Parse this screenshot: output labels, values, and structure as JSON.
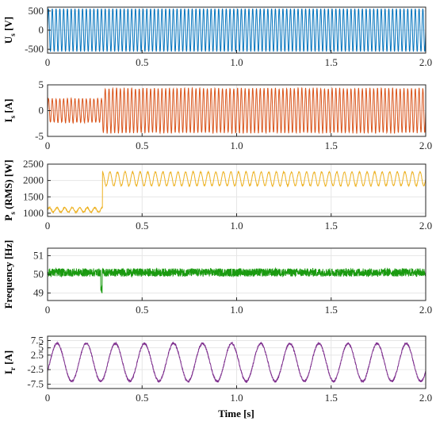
{
  "figure": {
    "xlabel": "Time [s]"
  },
  "chart_data": [
    {
      "type": "line",
      "ylabel": "U",
      "ylabel_sub": "s",
      "ylabel_unit": " [V]",
      "xlim": [
        0,
        2.0
      ],
      "ylim": [
        -600,
        600
      ],
      "xticks": [
        0,
        0.5,
        1.0,
        1.5,
        2.0
      ],
      "xtick_labels": [
        "0",
        "0.5",
        "1.0",
        "1.5",
        "2.0"
      ],
      "yticks": [
        500,
        0,
        -500
      ],
      "ytick_labels": [
        "500",
        "0",
        "-500"
      ],
      "grid": true,
      "series": [
        {
          "color": "#0072bd",
          "form": "sine",
          "freq_hz": 50,
          "segments": [
            {
              "t0": 0,
              "t1": 2.0,
              "amplitude": 560,
              "offset": 0
            }
          ],
          "noise": 0
        }
      ]
    },
    {
      "type": "line",
      "ylabel": "I",
      "ylabel_sub": "s",
      "ylabel_unit": " [A]",
      "xlim": [
        0,
        2.0
      ],
      "ylim": [
        -5,
        5
      ],
      "xticks": [
        0,
        0.5,
        1.0,
        1.5,
        2.0
      ],
      "xtick_labels": [
        "0",
        "0.5",
        "1.0",
        "1.5",
        "2.0"
      ],
      "yticks": [
        5,
        0,
        -5
      ],
      "ytick_labels": [
        "5",
        "0",
        "-5"
      ],
      "grid": true,
      "series": [
        {
          "color": "#d95319",
          "form": "sine",
          "freq_hz": 50,
          "segments": [
            {
              "t0": 0,
              "t1": 0.29,
              "amplitude": 2.3,
              "offset": 0
            },
            {
              "t0": 0.29,
              "t1": 2.0,
              "amplitude": 4.3,
              "offset": 0
            }
          ],
          "noise": 0.15
        }
      ]
    },
    {
      "type": "line",
      "ylabel": "P",
      "ylabel_sub": "s",
      "ylabel_unit": " (RMS) [W]",
      "xlim": [
        0,
        2.0
      ],
      "ylim": [
        900,
        2500
      ],
      "xticks": [
        0,
        0.5,
        1.0,
        1.5,
        2.0
      ],
      "xtick_labels": [
        "0",
        "0.5",
        "1.0",
        "1.5",
        "2.0"
      ],
      "yticks": [
        2500,
        2000,
        1500,
        1000
      ],
      "ytick_labels": [
        "2500",
        "2000",
        "1500",
        "1000"
      ],
      "grid": true,
      "series": [
        {
          "color": "#edb120",
          "form": "sine",
          "freq_hz": 25,
          "segments": [
            {
              "t0": 0,
              "t1": 0.29,
              "amplitude": 70,
              "offset": 1100
            },
            {
              "t0": 0.29,
              "t1": 2.0,
              "amplitude": 210,
              "offset": 2050
            }
          ],
          "noise": 15
        }
      ]
    },
    {
      "type": "line",
      "ylabel": "Frequency [Hz]",
      "ylabel_sub": "",
      "ylabel_unit": "",
      "xlim": [
        0,
        2.0
      ],
      "ylim": [
        48.6,
        51.4
      ],
      "xticks": [
        0,
        0.5,
        1.0,
        1.5,
        2.0
      ],
      "xtick_labels": [
        "0",
        "0.5",
        "1.0",
        "1.5",
        "2.0"
      ],
      "yticks": [
        51,
        50,
        49
      ],
      "ytick_labels": [
        "51",
        "50",
        "49"
      ],
      "grid": true,
      "series": [
        {
          "color": "#1a9a10",
          "form": "noise",
          "freq_hz": 0,
          "segments": [
            {
              "t0": 0,
              "t1": 2.0,
              "amplitude": 0,
              "offset": 50.1
            }
          ],
          "noise": 0.22
        }
      ]
    },
    {
      "type": "line",
      "ylabel": "I",
      "ylabel_sub": "r",
      "ylabel_unit": " [A]",
      "xlim": [
        0,
        2.0
      ],
      "ylim": [
        -9,
        9
      ],
      "xticks": [
        0,
        0.5,
        1.0,
        1.5,
        2.0
      ],
      "xtick_labels": [
        "0",
        "0.5",
        "1.0",
        "1.5",
        "2.0"
      ],
      "yticks": [
        7.5,
        5,
        2.5,
        -2.5,
        -7.5
      ],
      "ytick_labels": [
        "7.5",
        "5",
        "2.5",
        "-2.5",
        "-7.5"
      ],
      "grid": true,
      "series": [
        {
          "color": "#7e2f8e",
          "form": "sine",
          "freq_hz": 6.5,
          "phase": -0.5,
          "segments": [
            {
              "t0": 0,
              "t1": 2.0,
              "amplitude": 6.5,
              "offset": 0
            }
          ],
          "noise": 0.35
        }
      ]
    }
  ]
}
